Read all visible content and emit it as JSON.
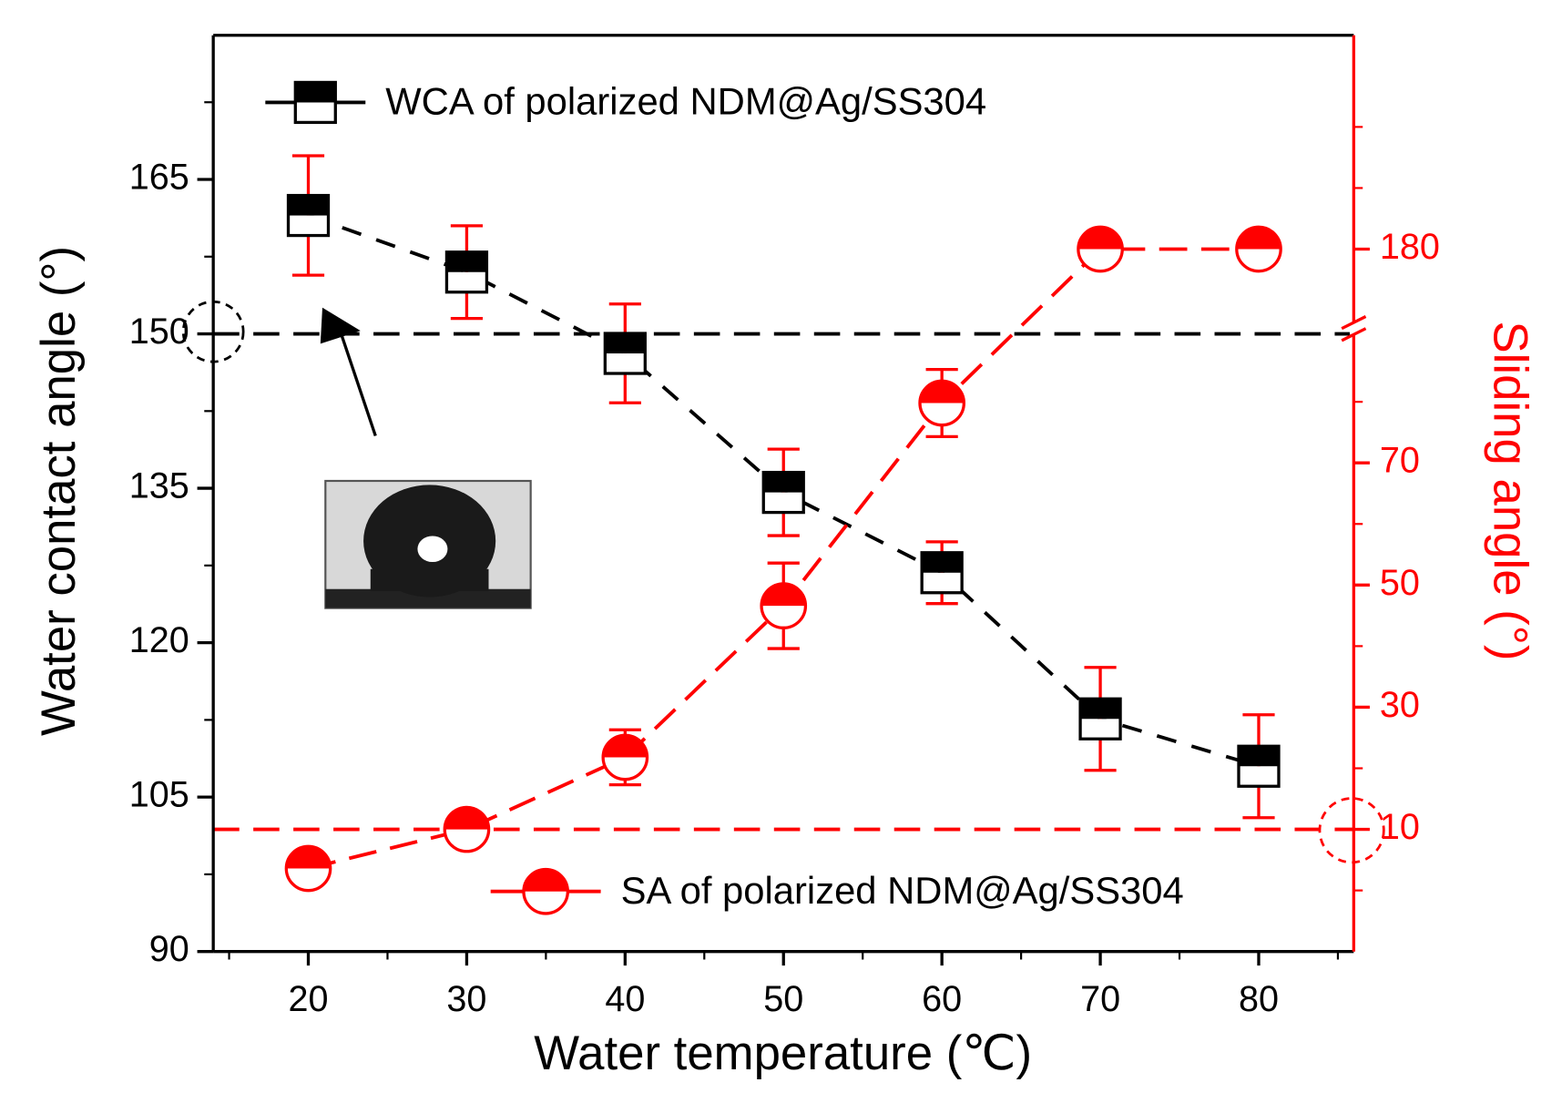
{
  "chart_data": {
    "type": "line",
    "xlabel": "Water temperature (℃)",
    "ylabel": "Water contact angle (°)",
    "y2label": "Sliding angle (°)",
    "x": [
      20,
      30,
      40,
      50,
      60,
      70,
      80
    ],
    "xlim": [
      14,
      86
    ],
    "xticks": [
      20,
      30,
      40,
      50,
      60,
      70,
      80
    ],
    "xticks_minor": [
      15,
      25,
      35,
      45,
      55,
      65,
      75,
      85
    ],
    "ylim": [
      90,
      179
    ],
    "yticks": [
      90,
      105,
      120,
      135,
      150,
      165
    ],
    "yticks_minor": [
      97.5,
      112.5,
      127.5,
      142.5,
      157.5,
      172.5
    ],
    "y2lim": [
      -10,
      215
    ],
    "y2break": [
      92,
      167
    ],
    "y2ticks": [
      10,
      30,
      50,
      70,
      180
    ],
    "y2ticks_minor": [
      0,
      20,
      40,
      60,
      80,
      190,
      200
    ],
    "series": [
      {
        "name": "WCA of polarized NDM@Ag/SS304",
        "color": "#000000",
        "marker": "square",
        "values": [
          161.5,
          156.0,
          148.1,
          134.6,
          126.8,
          112.6,
          108.0
        ],
        "errors": [
          5.8,
          4.5,
          4.8,
          4.2,
          3.0,
          5.0,
          5.0
        ]
      },
      {
        "name": "SA of polarized NDM@Ag/SS304",
        "color": "#ff0000",
        "marker": "circle",
        "axis": "y2",
        "values": [
          3.6,
          10,
          21.8,
          46.6,
          79.8,
          180,
          180
        ],
        "errors": [
          0,
          0,
          4.5,
          7,
          5.5,
          0,
          0
        ]
      }
    ],
    "reference_lines": [
      {
        "axis": "y",
        "value": 150,
        "color": "#000000"
      },
      {
        "axis": "y2",
        "value": 10,
        "color": "#ff0000"
      }
    ]
  }
}
